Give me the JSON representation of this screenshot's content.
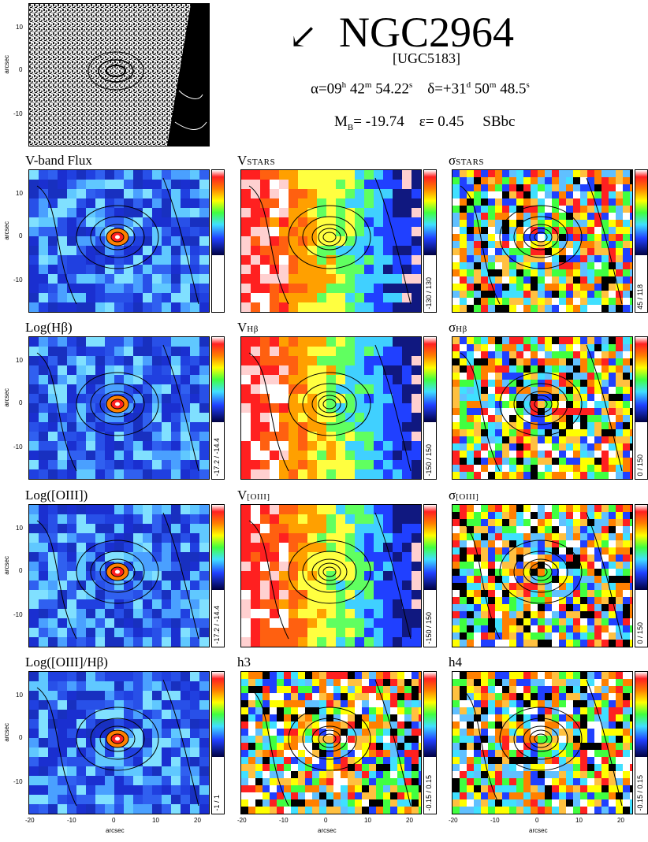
{
  "header": {
    "galaxy_name": "NGC2964",
    "alt_name": "[UGC5183]",
    "ra": {
      "prefix": "α=09",
      "h": "h",
      "m_val": " 42",
      "m": "m",
      "s_val": " 54.22",
      "s": "s"
    },
    "dec": {
      "prefix": "δ=+31",
      "d": "d",
      "m_val": " 50",
      "m": "m",
      "s_val": " 48.5",
      "s": "s"
    },
    "mb_label": "M",
    "mb_sub": "B",
    "mb_value": "= -19.74",
    "ellipticity": "ε= 0.45",
    "morph_type": "SBbc",
    "north_arrow": "↙"
  },
  "axis": {
    "ylabel": "arcsec",
    "xlabel": "arcsec",
    "yticks": [
      "10",
      "0",
      "-10"
    ],
    "xticks": [
      "-20",
      "-10",
      "0",
      "10",
      "20"
    ]
  },
  "panels": [
    {
      "id": "vflux",
      "title": "V-band Flux",
      "range": "",
      "scheme": "flux"
    },
    {
      "id": "vstars",
      "title_main": "V",
      "title_sc": "STARS",
      "range": "-130 / 130",
      "scheme": "vel"
    },
    {
      "id": "sstars",
      "title_main": "σ",
      "title_sc": "STARS",
      "range": "45 / 118",
      "scheme": "noise"
    },
    {
      "id": "loghb",
      "title": "Log(Hβ)",
      "range": "-17.2 / -14.4",
      "scheme": "flux"
    },
    {
      "id": "vhb",
      "title_main": "V",
      "title_sc": "Hβ",
      "range": "-150 / 150",
      "scheme": "vel"
    },
    {
      "id": "shb",
      "title_main": "σ",
      "title_sc": "Hβ",
      "range": "0 / 150",
      "scheme": "noise"
    },
    {
      "id": "logoiii",
      "title": "Log([OIII])",
      "range": "-17.2 / -14.4",
      "scheme": "flux"
    },
    {
      "id": "voiii",
      "title_main": "V",
      "title_sc": "[OIII]",
      "range": "-150 / 150",
      "scheme": "vel"
    },
    {
      "id": "soiii",
      "title_main": "σ",
      "title_sc": "[OIII]",
      "range": "0 / 150",
      "scheme": "noise"
    },
    {
      "id": "ratio",
      "title": "Log([OIII]/Hβ)",
      "range": "-1 / 1",
      "scheme": "flux"
    },
    {
      "id": "h3",
      "title": "h3",
      "range": "-0.15 / 0.15",
      "scheme": "noise"
    },
    {
      "id": "h4",
      "title": "h4",
      "range": "-0.15 / 0.15",
      "scheme": "noise"
    }
  ]
}
